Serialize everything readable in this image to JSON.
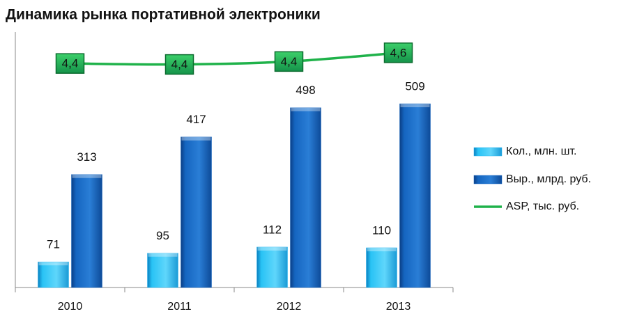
{
  "chart_data": {
    "type": "bar",
    "title": "Динамика рынка портативной электроники",
    "categories": [
      "2010",
      "2011",
      "2012",
      "2013"
    ],
    "series": [
      {
        "name": "Кол., млн. шт.",
        "color": "#29b6f0",
        "values": [
          71,
          95,
          112,
          110
        ]
      },
      {
        "name": "Выр., млрд. руб.",
        "color": "#1565c0",
        "values": [
          313,
          417,
          498,
          509
        ]
      },
      {
        "name": "ASP, тыс. руб.",
        "color": "#1fb24a",
        "type": "line",
        "axis": "y2",
        "values": [
          4.41,
          4.39,
          4.45,
          4.63
        ],
        "value_labels": [
          "4,4",
          "4,4",
          "4,4",
          "4,6"
        ]
      }
    ],
    "ylim": [
      0,
      700
    ],
    "y2lim": [
      -0.2,
      5
    ],
    "legend": "right"
  }
}
